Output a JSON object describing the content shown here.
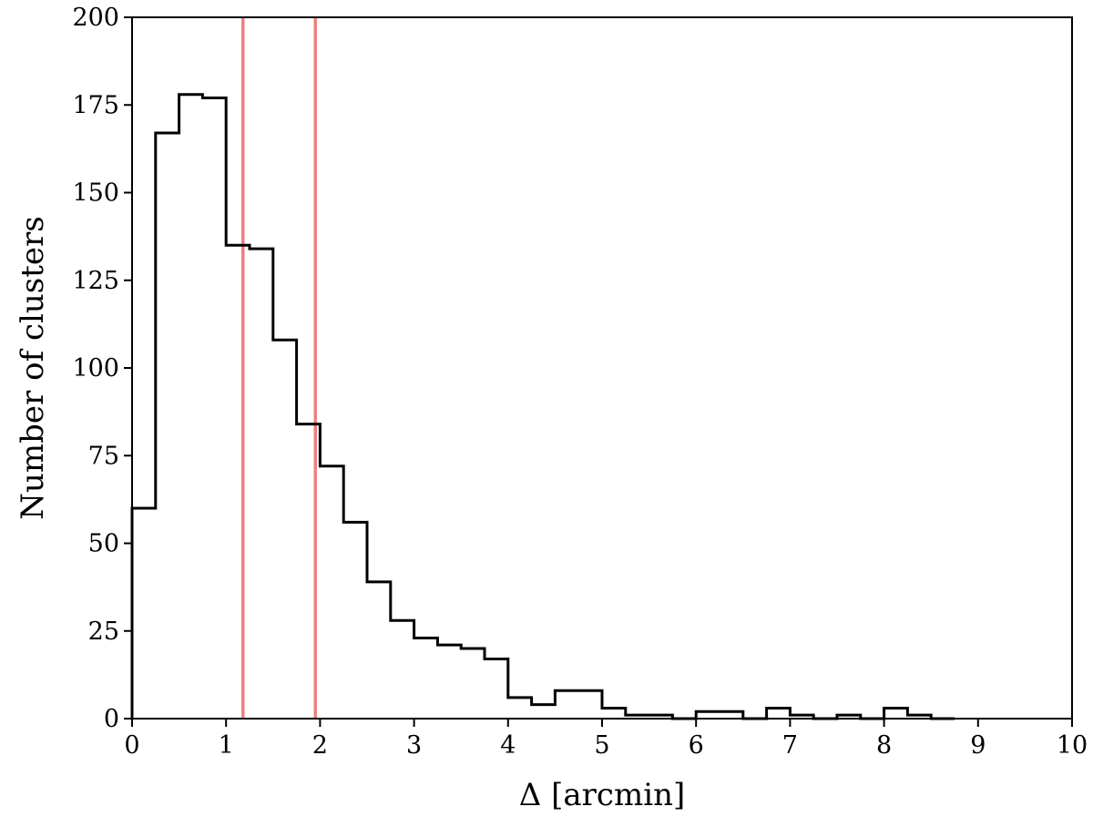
{
  "chart_data": {
    "type": "histogram",
    "xlabel": "Δ [arcmin]",
    "ylabel": "Number of clusters",
    "xlim": [
      0,
      10
    ],
    "ylim": [
      0,
      200
    ],
    "xticks": [
      0,
      1,
      2,
      3,
      4,
      5,
      6,
      7,
      8,
      9,
      10
    ],
    "yticks": [
      0,
      25,
      50,
      75,
      100,
      125,
      150,
      175,
      200
    ],
    "bin_edges": [
      0,
      0.25,
      0.5,
      0.75,
      1.0,
      1.25,
      1.5,
      1.75,
      2.0,
      2.25,
      2.5,
      2.75,
      3.0,
      3.25,
      3.5,
      3.75,
      4.0,
      4.25,
      4.5,
      4.75,
      5.0,
      5.25,
      5.5,
      5.75,
      6.0,
      6.25,
      6.5,
      6.75,
      7.0,
      7.25,
      7.5,
      7.75,
      8.0,
      8.25,
      8.5,
      8.75
    ],
    "counts": [
      60,
      167,
      178,
      177,
      135,
      134,
      108,
      84,
      72,
      56,
      39,
      28,
      23,
      21,
      20,
      17,
      6,
      4,
      8,
      8,
      3,
      1,
      1,
      0,
      2,
      2,
      0,
      3,
      1,
      0,
      1,
      0,
      3,
      1,
      0
    ],
    "vertical_lines": [
      {
        "x": 1.18,
        "color": "#f08080"
      },
      {
        "x": 1.95,
        "color": "#f08080"
      }
    ],
    "grid": false,
    "colors": {
      "histogram": "#000000"
    }
  }
}
